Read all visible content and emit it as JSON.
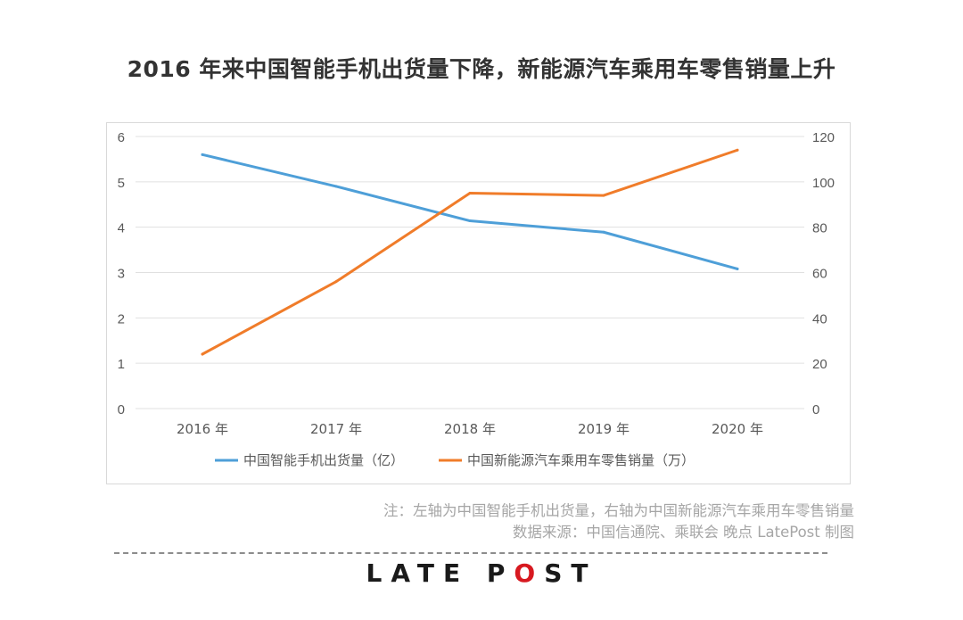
{
  "title": "2016 年来中国智能手机出货量下降，新能源汽车乘用车零售销量上升",
  "notes": {
    "line1": "注：左轴为中国智能手机出货量，右轴为中国新能源汽车乘用车零售销量",
    "line2": "数据来源：中国信通院、乘联会 晚点 LatePost 制图"
  },
  "brand": {
    "prefix": "L",
    "mid1": "ATE P",
    "accent": "O",
    "mid2": "ST"
  },
  "colors": {
    "series1": "#4e9fd8",
    "series2": "#f07c2a",
    "grid": "#e0e0e0",
    "axis_text": "#595959"
  },
  "chart_data": {
    "type": "line",
    "categories": [
      "2016 年",
      "2017 年",
      "2018 年",
      "2019 年",
      "2020 年"
    ],
    "series": [
      {
        "name": "中国智能手机出货量（亿）",
        "axis": "left",
        "values": [
          5.6,
          4.9,
          4.14,
          3.89,
          3.08
        ]
      },
      {
        "name": "中国新能源汽车乘用车零售销量（万）",
        "axis": "right",
        "values": [
          24,
          56,
          95,
          94,
          114
        ]
      }
    ],
    "ylim_left": [
      0,
      6
    ],
    "yticks_left": [
      0,
      1,
      2,
      3,
      4,
      5,
      6
    ],
    "ylim_right": [
      0,
      120
    ],
    "yticks_right": [
      0,
      20,
      40,
      60,
      80,
      100,
      120
    ],
    "grid": true,
    "legend": "bottom"
  }
}
